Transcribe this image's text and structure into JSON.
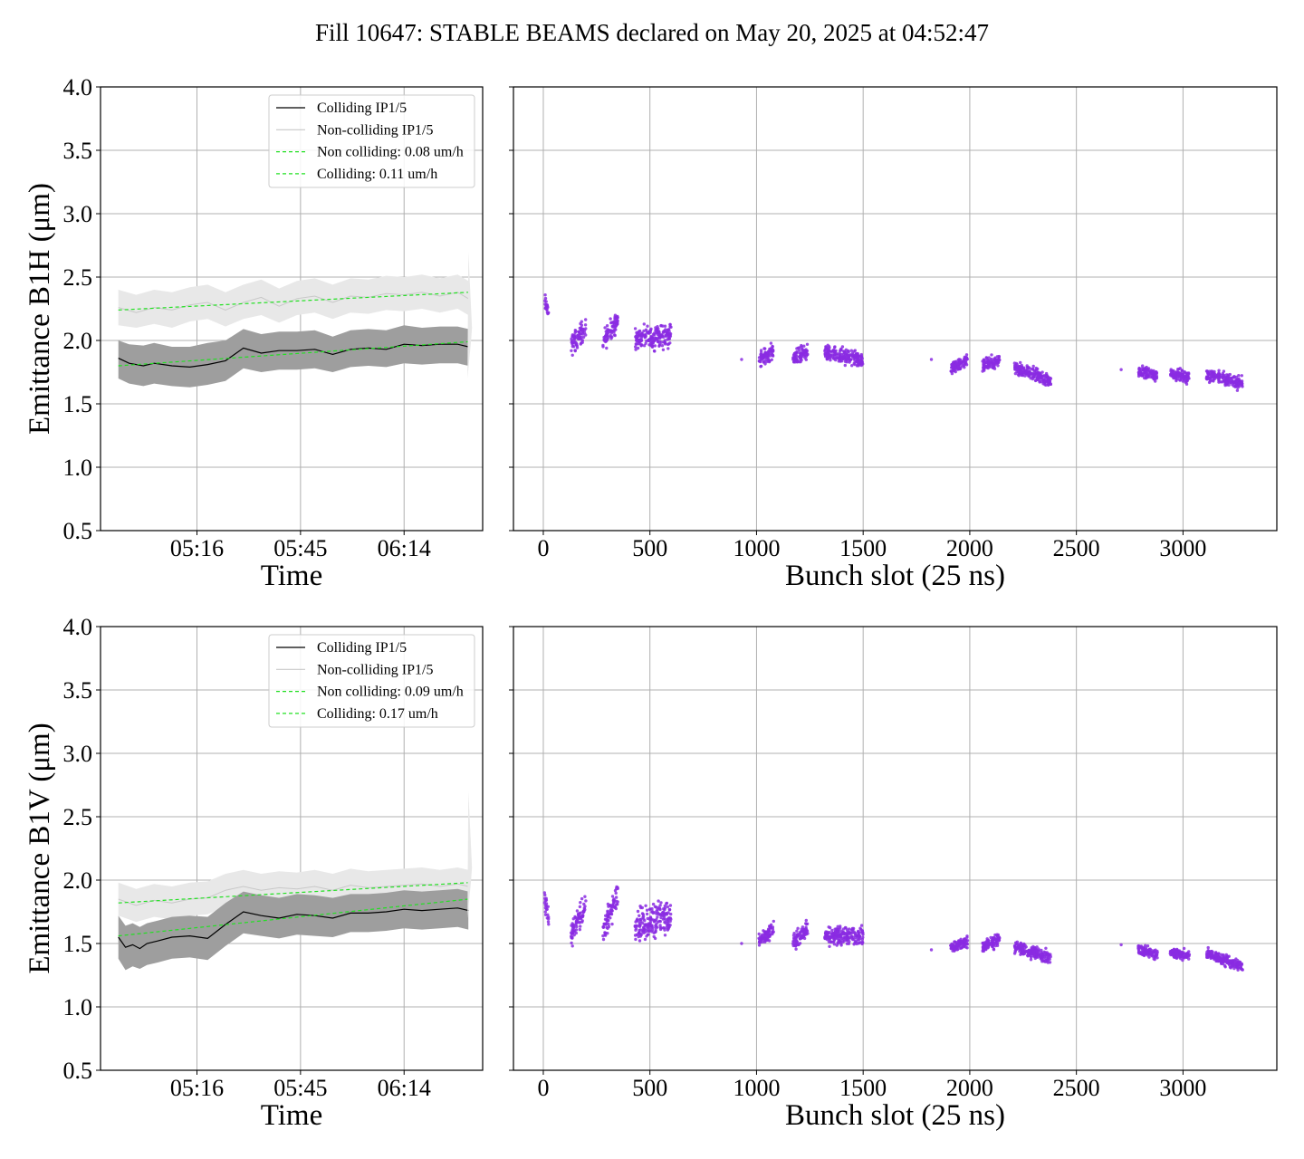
{
  "figure": {
    "title": "Fill 10647: STABLE BEAMS declared on May 20, 2025 at 04:52:47"
  },
  "colors": {
    "colliding": "#000000",
    "colliding_band": "#9e9e9e",
    "noncolliding": "#c8c8c8",
    "noncolliding_band": "#e8e8e8",
    "fit": "#22e022",
    "scatter": "#8a2be2"
  },
  "chart_data": [
    {
      "id": "b1h-time",
      "type": "line",
      "xlabel": "Time",
      "ylabel": "Emittance B1H (μm)",
      "ylim": [
        0.5,
        4.0
      ],
      "yticks": [
        "0.5",
        "1.0",
        "1.5",
        "2.0",
        "2.5",
        "3.0",
        "3.5",
        "4.0"
      ],
      "xticks": [
        "05:16",
        "05:45",
        "06:14"
      ],
      "x_minutes_range": [
        0,
        107
      ],
      "xtick_minutes": [
        27,
        56,
        85
      ],
      "grid": true,
      "legend_position": "top-right",
      "legend": [
        "Colliding IP1/5",
        "Non-colliding IP1/5",
        "Non colliding: 0.08 um/h",
        "Colliding: 0.11 um/h"
      ],
      "series": [
        {
          "name": "Colliding IP1/5",
          "x": [
            5,
            8,
            12,
            15,
            20,
            25,
            30,
            35,
            40,
            45,
            50,
            55,
            60,
            65,
            70,
            75,
            80,
            85,
            90,
            95,
            100,
            103
          ],
          "values": [
            1.86,
            1.82,
            1.8,
            1.82,
            1.8,
            1.79,
            1.81,
            1.84,
            1.94,
            1.9,
            1.92,
            1.92,
            1.93,
            1.89,
            1.93,
            1.94,
            1.93,
            1.97,
            1.96,
            1.97,
            1.97,
            1.95
          ],
          "band_low": [
            1.7,
            1.66,
            1.64,
            1.66,
            1.64,
            1.63,
            1.65,
            1.68,
            1.78,
            1.75,
            1.77,
            1.77,
            1.78,
            1.75,
            1.79,
            1.8,
            1.79,
            1.82,
            1.81,
            1.82,
            1.82,
            1.8
          ],
          "band_high": [
            2.0,
            1.97,
            1.96,
            1.98,
            1.95,
            1.95,
            1.98,
            2.0,
            2.09,
            2.05,
            2.07,
            2.07,
            2.08,
            2.03,
            2.08,
            2.09,
            2.08,
            2.12,
            2.1,
            2.11,
            2.11,
            2.09
          ]
        },
        {
          "name": "Non-colliding IP1/5",
          "x": [
            5,
            10,
            15,
            20,
            25,
            30,
            35,
            40,
            45,
            50,
            55,
            60,
            65,
            70,
            75,
            80,
            85,
            90,
            95,
            100,
            103
          ],
          "values": [
            2.26,
            2.22,
            2.26,
            2.24,
            2.28,
            2.3,
            2.24,
            2.3,
            2.34,
            2.27,
            2.33,
            2.35,
            2.3,
            2.35,
            2.34,
            2.37,
            2.36,
            2.38,
            2.35,
            2.38,
            2.33
          ],
          "band_low": [
            2.12,
            2.1,
            2.13,
            2.1,
            2.15,
            2.17,
            2.11,
            2.17,
            2.2,
            2.14,
            2.2,
            2.22,
            2.17,
            2.22,
            2.21,
            2.24,
            2.23,
            2.25,
            2.22,
            2.25,
            2.2
          ],
          "band_high": [
            2.4,
            2.36,
            2.4,
            2.38,
            2.42,
            2.44,
            2.38,
            2.44,
            2.48,
            2.41,
            2.47,
            2.49,
            2.44,
            2.49,
            2.48,
            2.51,
            2.5,
            2.52,
            2.49,
            2.52,
            2.47
          ]
        },
        {
          "name": "Non colliding: 0.08 um/h",
          "x": [
            5,
            103
          ],
          "values": [
            2.24,
            2.38
          ]
        },
        {
          "name": "Colliding: 0.11 um/h",
          "x": [
            5,
            103
          ],
          "values": [
            1.8,
            1.99
          ]
        }
      ]
    },
    {
      "id": "b1h-slot",
      "type": "scatter",
      "xlabel": "Bunch slot (25 ns)",
      "xlim": [
        -140,
        3440
      ],
      "xticks": [
        0,
        500,
        1000,
        1500,
        2000,
        2500,
        3000
      ],
      "ylim": [
        0.5,
        4.0
      ],
      "grid": true,
      "trains": [
        {
          "start": 5,
          "end": 25,
          "y0": 2.32,
          "y1": 2.22,
          "spread": 0.06
        },
        {
          "start": 130,
          "end": 200,
          "y0": 1.96,
          "y1": 2.1,
          "spread": 0.08
        },
        {
          "start": 280,
          "end": 350,
          "y0": 2.0,
          "y1": 2.15,
          "spread": 0.08
        },
        {
          "start": 430,
          "end": 600,
          "y0": 2.02,
          "y1": 2.04,
          "spread": 0.09
        },
        {
          "start": 1010,
          "end": 1080,
          "y0": 1.85,
          "y1": 1.92,
          "spread": 0.06
        },
        {
          "start": 1170,
          "end": 1240,
          "y0": 1.85,
          "y1": 1.92,
          "spread": 0.06
        },
        {
          "start": 1320,
          "end": 1500,
          "y0": 1.9,
          "y1": 1.84,
          "spread": 0.06
        },
        {
          "start": 1910,
          "end": 1990,
          "y0": 1.78,
          "y1": 1.84,
          "spread": 0.05
        },
        {
          "start": 2060,
          "end": 2140,
          "y0": 1.8,
          "y1": 1.84,
          "spread": 0.05
        },
        {
          "start": 2210,
          "end": 2380,
          "y0": 1.79,
          "y1": 1.68,
          "spread": 0.05
        },
        {
          "start": 2790,
          "end": 2880,
          "y0": 1.75,
          "y1": 1.73,
          "spread": 0.05
        },
        {
          "start": 2940,
          "end": 3030,
          "y0": 1.74,
          "y1": 1.71,
          "spread": 0.05
        },
        {
          "start": 3110,
          "end": 3280,
          "y0": 1.73,
          "y1": 1.66,
          "spread": 0.05
        }
      ],
      "singles": [
        [
          930,
          1.85
        ],
        [
          1820,
          1.85
        ],
        [
          2710,
          1.77
        ]
      ]
    },
    {
      "id": "b1v-time",
      "type": "line",
      "xlabel": "Time",
      "ylabel": "Emittance B1V (μm)",
      "ylim": [
        0.5,
        4.0
      ],
      "yticks": [
        "0.5",
        "1.0",
        "1.5",
        "2.0",
        "2.5",
        "3.0",
        "3.5",
        "4.0"
      ],
      "xticks": [
        "05:16",
        "05:45",
        "06:14"
      ],
      "x_minutes_range": [
        0,
        107
      ],
      "xtick_minutes": [
        27,
        56,
        85
      ],
      "grid": true,
      "legend_position": "top-right",
      "legend": [
        "Colliding IP1/5",
        "Non-colliding IP1/5",
        "Non colliding: 0.09 um/h",
        "Colliding: 0.17 um/h"
      ],
      "series": [
        {
          "name": "Colliding IP1/5",
          "x": [
            5,
            7,
            9,
            11,
            13,
            16,
            20,
            25,
            30,
            35,
            40,
            45,
            50,
            55,
            60,
            65,
            70,
            75,
            80,
            85,
            90,
            95,
            100,
            103
          ],
          "values": [
            1.55,
            1.47,
            1.49,
            1.46,
            1.5,
            1.52,
            1.55,
            1.56,
            1.54,
            1.65,
            1.75,
            1.72,
            1.7,
            1.73,
            1.72,
            1.7,
            1.74,
            1.74,
            1.75,
            1.77,
            1.76,
            1.77,
            1.78,
            1.76
          ],
          "band_low": [
            1.38,
            1.29,
            1.32,
            1.3,
            1.33,
            1.35,
            1.38,
            1.39,
            1.37,
            1.48,
            1.58,
            1.56,
            1.54,
            1.57,
            1.56,
            1.55,
            1.59,
            1.59,
            1.6,
            1.62,
            1.61,
            1.62,
            1.63,
            1.61
          ],
          "band_high": [
            1.72,
            1.64,
            1.66,
            1.63,
            1.66,
            1.68,
            1.71,
            1.72,
            1.71,
            1.82,
            1.91,
            1.88,
            1.86,
            1.89,
            1.88,
            1.86,
            1.89,
            1.89,
            1.9,
            1.92,
            1.91,
            1.92,
            1.93,
            1.91
          ]
        },
        {
          "name": "Non-colliding IP1/5",
          "x": [
            5,
            10,
            15,
            20,
            25,
            30,
            35,
            40,
            45,
            50,
            55,
            60,
            65,
            70,
            75,
            80,
            85,
            90,
            95,
            100,
            103
          ],
          "values": [
            1.85,
            1.8,
            1.84,
            1.82,
            1.85,
            1.86,
            1.92,
            1.95,
            1.92,
            1.94,
            1.93,
            1.95,
            1.92,
            1.96,
            1.94,
            1.95,
            1.96,
            1.97,
            1.95,
            1.97,
            1.95
          ],
          "band_low": [
            1.72,
            1.67,
            1.71,
            1.69,
            1.72,
            1.73,
            1.79,
            1.82,
            1.79,
            1.81,
            1.8,
            1.82,
            1.79,
            1.83,
            1.81,
            1.82,
            1.83,
            1.84,
            1.82,
            1.84,
            1.82
          ],
          "band_high": [
            1.98,
            1.93,
            1.97,
            1.95,
            1.98,
            1.99,
            2.05,
            2.08,
            2.05,
            2.07,
            2.06,
            2.08,
            2.05,
            2.09,
            2.07,
            2.08,
            2.09,
            2.1,
            2.08,
            2.1,
            2.08
          ]
        },
        {
          "name": "Non colliding: 0.09 um/h",
          "x": [
            5,
            103
          ],
          "values": [
            1.82,
            1.98
          ]
        },
        {
          "name": "Colliding: 0.17 um/h",
          "x": [
            5,
            103
          ],
          "values": [
            1.56,
            1.85
          ]
        }
      ]
    },
    {
      "id": "b1v-slot",
      "type": "scatter",
      "xlabel": "Bunch slot (25 ns)",
      "xlim": [
        -140,
        3440
      ],
      "xticks": [
        0,
        500,
        1000,
        1500,
        2000,
        2500,
        3000
      ],
      "ylim": [
        0.5,
        4.0
      ],
      "grid": true,
      "trains": [
        {
          "start": 5,
          "end": 25,
          "y0": 1.85,
          "y1": 1.72,
          "spread": 0.08
        },
        {
          "start": 130,
          "end": 200,
          "y0": 1.55,
          "y1": 1.82,
          "spread": 0.09
        },
        {
          "start": 280,
          "end": 350,
          "y0": 1.6,
          "y1": 1.9,
          "spread": 0.1
        },
        {
          "start": 430,
          "end": 600,
          "y0": 1.65,
          "y1": 1.72,
          "spread": 0.13
        },
        {
          "start": 1010,
          "end": 1080,
          "y0": 1.5,
          "y1": 1.62,
          "spread": 0.06
        },
        {
          "start": 1170,
          "end": 1240,
          "y0": 1.5,
          "y1": 1.62,
          "spread": 0.06
        },
        {
          "start": 1320,
          "end": 1500,
          "y0": 1.56,
          "y1": 1.56,
          "spread": 0.07
        },
        {
          "start": 1910,
          "end": 1990,
          "y0": 1.46,
          "y1": 1.52,
          "spread": 0.05
        },
        {
          "start": 2060,
          "end": 2140,
          "y0": 1.47,
          "y1": 1.54,
          "spread": 0.05
        },
        {
          "start": 2210,
          "end": 2380,
          "y0": 1.47,
          "y1": 1.39,
          "spread": 0.05
        },
        {
          "start": 2790,
          "end": 2880,
          "y0": 1.45,
          "y1": 1.41,
          "spread": 0.04
        },
        {
          "start": 2940,
          "end": 3030,
          "y0": 1.43,
          "y1": 1.4,
          "spread": 0.04
        },
        {
          "start": 3110,
          "end": 3280,
          "y0": 1.42,
          "y1": 1.32,
          "spread": 0.04
        }
      ],
      "singles": [
        [
          930,
          1.5
        ],
        [
          1820,
          1.45
        ],
        [
          2710,
          1.49
        ]
      ]
    }
  ]
}
